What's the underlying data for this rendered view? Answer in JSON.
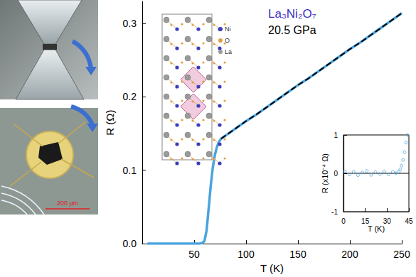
{
  "chart_data": [
    {
      "type": "line",
      "title": "La₃Ni₂O₇",
      "subtitle": "20.5 GPa",
      "x_label": "T (K)",
      "y_label": "R (Ω)",
      "x": [
        5,
        10,
        20,
        30,
        40,
        50,
        55,
        58,
        60,
        62,
        64,
        66,
        68,
        70,
        72,
        74,
        76,
        80,
        90,
        100,
        110,
        120,
        130,
        140,
        150,
        160,
        170,
        180,
        190,
        200,
        210,
        220,
        230,
        240,
        250
      ],
      "series": [
        {
          "color": "#4aa3df",
          "line_style": "solid",
          "values": [
            0,
            0,
            0,
            0,
            0,
            0,
            0,
            0.001,
            0.004,
            0.018,
            0.048,
            0.079,
            0.104,
            0.121,
            0.132,
            0.139,
            0.143,
            0.147,
            0.157,
            0.167,
            0.176,
            0.186,
            0.196,
            0.206,
            0.216,
            0.225,
            0.235,
            0.245,
            0.255,
            0.265,
            0.274,
            0.284,
            0.294,
            0.304,
            0.314
          ]
        },
        {
          "color": "#000000",
          "line_style": "dashed",
          "values": [
            null,
            null,
            null,
            null,
            null,
            null,
            null,
            null,
            null,
            null,
            null,
            null,
            null,
            null,
            null,
            null,
            0.143,
            0.147,
            0.157,
            0.167,
            0.176,
            0.186,
            0.196,
            0.206,
            0.216,
            0.225,
            0.235,
            0.245,
            0.255,
            0.265,
            0.274,
            0.284,
            0.294,
            0.304,
            0.314
          ]
        }
      ],
      "xlim": [
        0,
        250
      ],
      "xticks": [
        50,
        100,
        150,
        200,
        250
      ],
      "ylim": [
        0,
        0.33
      ],
      "yticks": [
        {
          "value": 0,
          "label": "0.0"
        },
        0.1,
        0.2,
        0.3
      ],
      "grid": false
    },
    {
      "type": "scatter",
      "x_label": "T (K)",
      "y_label": "R (x10⁻⁴ Ω)",
      "series": [
        {
          "color": "#4aa3df",
          "marker": "circle",
          "x": [
            1,
            4,
            7,
            10,
            13,
            16,
            19,
            22,
            25,
            28,
            31,
            34,
            36,
            38,
            39,
            40,
            41,
            42,
            43,
            44
          ],
          "values": [
            0.05,
            -0.03,
            0.04,
            -0.05,
            0.02,
            0.06,
            -0.04,
            0.03,
            -0.02,
            0.05,
            -0.03,
            0.04,
            0,
            0.05,
            0.1,
            0.2,
            0.35,
            0.55,
            0.8,
            1.0
          ]
        },
        {
          "type": "line",
          "color": "#000000",
          "x": [
            0,
            45
          ],
          "values": [
            0,
            0
          ]
        }
      ],
      "xlim": [
        0,
        45
      ],
      "xticks": [
        0,
        15,
        30,
        45
      ],
      "ylim": [
        -1,
        1
      ],
      "yticks": [
        -1,
        0,
        1
      ],
      "grid": false
    }
  ],
  "photos": {
    "scale_bar": "200 μm"
  },
  "structure": {
    "atoms": [
      {
        "label": "Ni",
        "color": "#3d3db8"
      },
      {
        "label": "O",
        "color": "#e0a040"
      },
      {
        "label": "La",
        "color": "#9a9a9a"
      }
    ]
  }
}
